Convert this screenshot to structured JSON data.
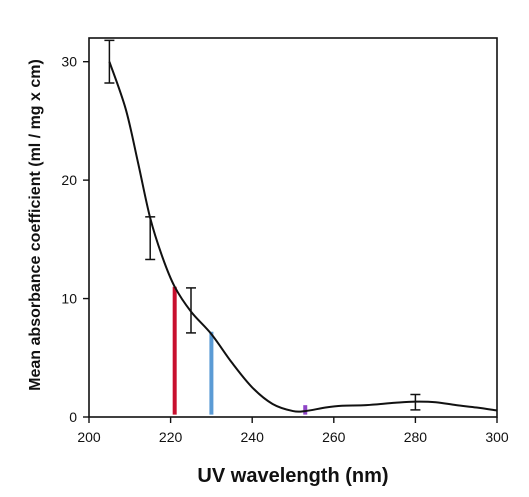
{
  "chart_data": {
    "type": "line",
    "title": "",
    "xlabel": "UV wavelength (nm)",
    "ylabel": "Mean absorbance coefficient (ml / mg x cm)",
    "xlim": [
      200,
      300
    ],
    "ylim": [
      0,
      32
    ],
    "xticks": [
      200,
      220,
      240,
      260,
      280,
      300
    ],
    "yticks": [
      0,
      10,
      20,
      30
    ],
    "grid": false,
    "legend": "none",
    "series": [
      {
        "points": [
          {
            "x": 205,
            "y": 30.0
          },
          {
            "x": 209,
            "y": 26.0
          },
          {
            "x": 212,
            "y": 21.5
          },
          {
            "x": 215,
            "y": 16.8
          },
          {
            "x": 218,
            "y": 13.5
          },
          {
            "x": 221,
            "y": 11.0
          },
          {
            "x": 225,
            "y": 8.9
          },
          {
            "x": 230,
            "y": 7.0
          },
          {
            "x": 235,
            "y": 4.6
          },
          {
            "x": 240,
            "y": 2.5
          },
          {
            "x": 245,
            "y": 1.1
          },
          {
            "x": 250,
            "y": 0.5
          },
          {
            "x": 253,
            "y": 0.5
          },
          {
            "x": 258,
            "y": 0.8
          },
          {
            "x": 262,
            "y": 0.95
          },
          {
            "x": 268,
            "y": 1.0
          },
          {
            "x": 275,
            "y": 1.2
          },
          {
            "x": 280,
            "y": 1.3
          },
          {
            "x": 285,
            "y": 1.25
          },
          {
            "x": 290,
            "y": 1.0
          },
          {
            "x": 295,
            "y": 0.8
          },
          {
            "x": 300,
            "y": 0.55
          }
        ]
      }
    ],
    "error_bars": [
      {
        "x": 205,
        "y": 30.0,
        "low": 28.2,
        "high": 31.8
      },
      {
        "x": 215,
        "y": 15.0,
        "low": 13.3,
        "high": 16.9
      },
      {
        "x": 225,
        "y": 9.0,
        "low": 7.1,
        "high": 10.9
      },
      {
        "x": 280,
        "y": 1.3,
        "low": 0.6,
        "high": 1.9
      }
    ],
    "markers": [
      {
        "x": 221,
        "low": 0.2,
        "high": 11.0,
        "color": "#c8102e"
      },
      {
        "x": 230,
        "low": 0.2,
        "high": 7.2,
        "color": "#5b9bd5"
      },
      {
        "x": 253,
        "low": 0.2,
        "high": 1.0,
        "color": "#8e44c6"
      }
    ],
    "colors": {
      "curve": "#111111",
      "axes": "#111111"
    }
  }
}
